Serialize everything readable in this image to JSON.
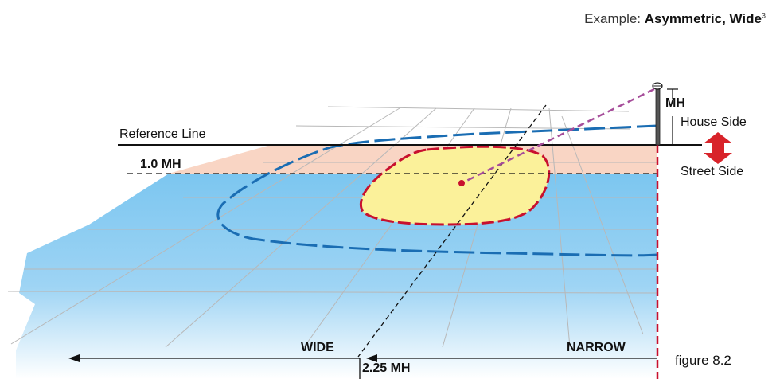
{
  "title": {
    "prefix": "Example: ",
    "emphasis": "Asymmetric, Wide",
    "superscript": "3"
  },
  "labels": {
    "reference_line": "Reference Line",
    "one_mh": "1.0 MH",
    "mh": "MH",
    "house_side": "House Side",
    "street_side": "Street Side",
    "wide": "WIDE",
    "narrow": "NARROW",
    "two_25_mh": "2.25 MH",
    "figure": "figure 8.2"
  },
  "colors": {
    "house_side_band": "#f9d5c4",
    "street_side_field": "#7cc6f0",
    "outer_contour": "#1a6db3",
    "inner_contour": "#c8102e",
    "inner_fill": "#fbf19a",
    "light_beam": "#a64d9a",
    "arrow_red": "#d8232a"
  }
}
